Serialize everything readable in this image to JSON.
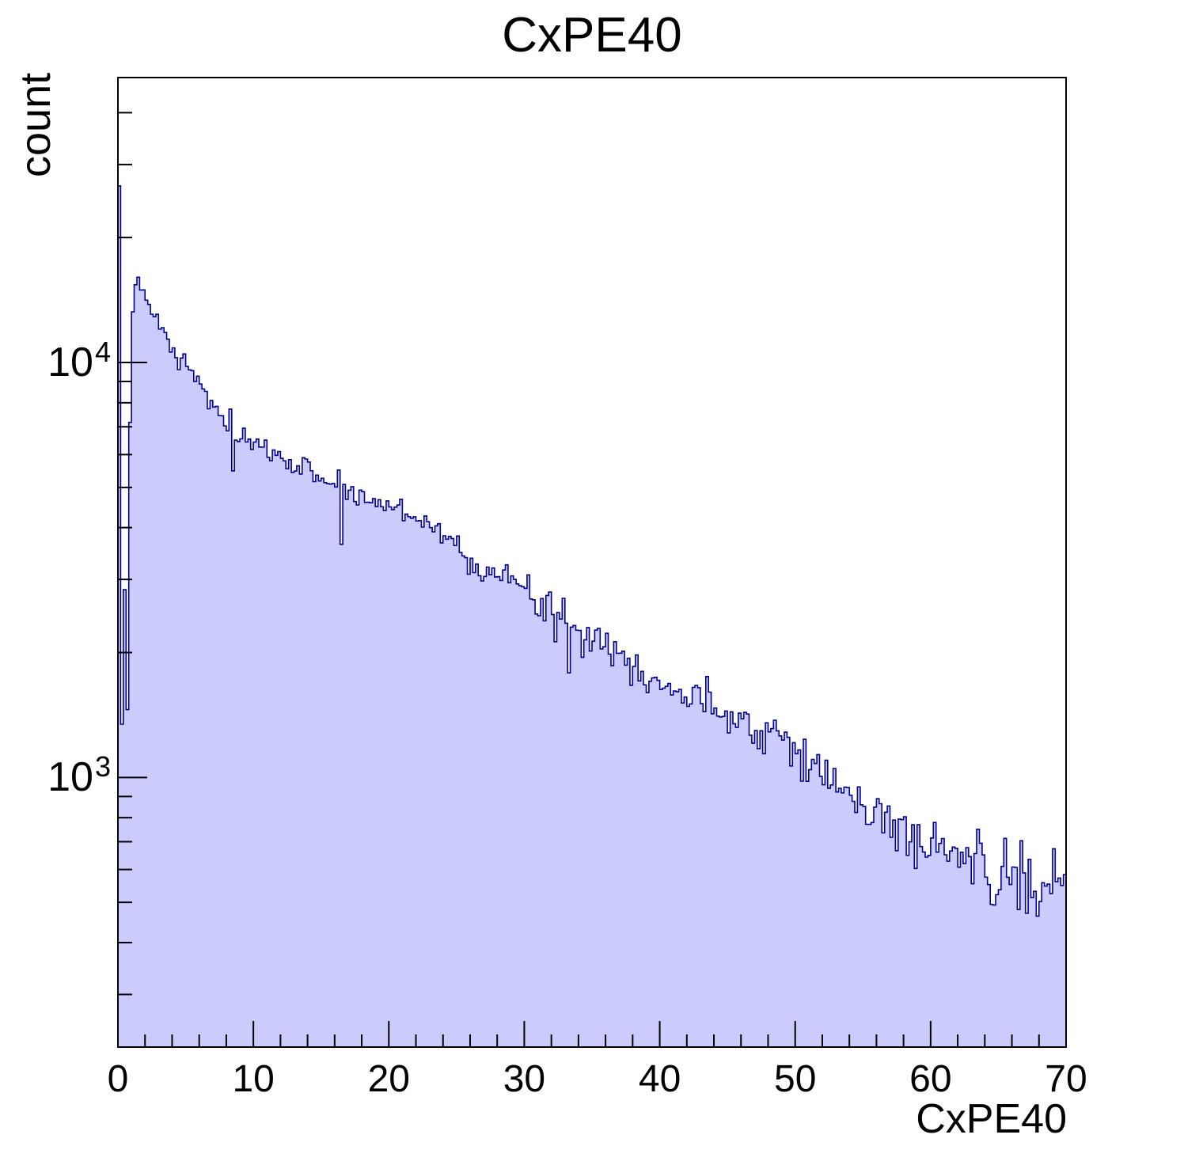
{
  "title": "CxPE40",
  "axes": {
    "x": {
      "label": "CxPE40",
      "min": 0,
      "max": 70,
      "major_tick_step": 10,
      "minor_tick_step": 2,
      "tick_labels": [
        "0",
        "10",
        "20",
        "30",
        "40",
        "50",
        "60",
        "70"
      ]
    },
    "y": {
      "label": "count",
      "scale": "log",
      "min": 224,
      "max": 48600,
      "tick_labels": [
        {
          "mantissa": "10",
          "exponent": "4"
        },
        {
          "mantissa": "10",
          "exponent": "3"
        }
      ]
    }
  },
  "colors": {
    "fill": "#ccccfc",
    "line": "#00008b",
    "frame": "#000000",
    "background": "#ffffff",
    "text": "#000000"
  },
  "chart_data": {
    "type": "histogram",
    "title": "CxPE40",
    "xlabel": "CxPE40",
    "ylabel": "count",
    "bin_width": 0.2,
    "x_range": [
      0,
      70
    ],
    "y_range": [
      224,
      48600
    ],
    "y_scale": "log",
    "grid": false,
    "legend": false,
    "envelope_points": [
      [
        0.1,
        25700
      ],
      [
        0.3,
        1350
      ],
      [
        0.5,
        2950
      ],
      [
        0.7,
        1450
      ],
      [
        0.9,
        7200
      ],
      [
        1.1,
        13000
      ],
      [
        1.3,
        15600
      ],
      [
        1.5,
        16400
      ],
      [
        1.8,
        14900
      ],
      [
        2.1,
        13800
      ],
      [
        2.5,
        13200
      ],
      [
        3.0,
        12400
      ],
      [
        3.5,
        11600
      ],
      [
        4.0,
        10700
      ],
      [
        4.5,
        9900
      ],
      [
        5.0,
        10100
      ],
      [
        5.5,
        9600
      ],
      [
        6.0,
        8800
      ],
      [
        6.5,
        8350
      ],
      [
        7.0,
        7850
      ],
      [
        7.5,
        7500
      ],
      [
        8.0,
        7050
      ],
      [
        8.7,
        6650
      ],
      [
        9.5,
        6400
      ],
      [
        10.5,
        6200
      ],
      [
        11.5,
        6030
      ],
      [
        12.5,
        5800
      ],
      [
        13.5,
        5600
      ],
      [
        14.5,
        5420
      ],
      [
        15.5,
        5200
      ],
      [
        16.5,
        4900
      ],
      [
        17.5,
        4780
      ],
      [
        18.5,
        4670
      ],
      [
        19.5,
        4550
      ],
      [
        20.5,
        4470
      ],
      [
        21.5,
        4330
      ],
      [
        22.5,
        4180
      ],
      [
        23.5,
        4000
      ],
      [
        24.5,
        3750
      ],
      [
        25.5,
        3430
      ],
      [
        26.5,
        3300
      ],
      [
        27.5,
        3150
      ],
      [
        28.5,
        3000
      ],
      [
        29.5,
        2880
      ],
      [
        30.5,
        2740
      ],
      [
        31.5,
        2620
      ],
      [
        32.5,
        2450
      ],
      [
        33.5,
        2350
      ],
      [
        34.5,
        2260
      ],
      [
        35.5,
        2150
      ],
      [
        36.5,
        2030
      ],
      [
        37.5,
        1940
      ],
      [
        38.5,
        1850
      ],
      [
        39.5,
        1740
      ],
      [
        40.5,
        1670
      ],
      [
        41.5,
        1590
      ],
      [
        42.5,
        1540
      ],
      [
        43.5,
        1510
      ],
      [
        44.5,
        1460
      ],
      [
        45.5,
        1420
      ],
      [
        46.5,
        1380
      ],
      [
        47.5,
        1330
      ],
      [
        48.5,
        1290
      ],
      [
        49.5,
        1240
      ],
      [
        50.5,
        1160
      ],
      [
        51.5,
        1070
      ],
      [
        52.5,
        990
      ],
      [
        53.5,
        930
      ],
      [
        54.5,
        870
      ],
      [
        55.5,
        830
      ],
      [
        56.5,
        795
      ],
      [
        57.5,
        765
      ],
      [
        58.5,
        735
      ],
      [
        59.5,
        705
      ],
      [
        60.5,
        678
      ],
      [
        61.5,
        658
      ],
      [
        62.5,
        645
      ],
      [
        63.5,
        622
      ],
      [
        64.5,
        605
      ],
      [
        65.5,
        588
      ],
      [
        66.5,
        565
      ],
      [
        67.5,
        540
      ],
      [
        68.5,
        520
      ],
      [
        69.5,
        505
      ]
    ],
    "noise": {
      "seed": 7,
      "decade_sigma_per_sqrt_count": 1.0,
      "clamp_sigma": 2.5
    },
    "spikes": [
      [
        4.9,
        1.05
      ],
      [
        5.3,
        0.95
      ],
      [
        8.3,
        1.1
      ],
      [
        8.5,
        0.8
      ],
      [
        16.3,
        1.1
      ],
      [
        16.5,
        0.76
      ],
      [
        29.3,
        1.08
      ],
      [
        31.9,
        1.1
      ],
      [
        32.3,
        0.84
      ],
      [
        32.9,
        1.14
      ],
      [
        33.3,
        0.8
      ],
      [
        33.7,
        1.08
      ],
      [
        34.3,
        0.86
      ],
      [
        36.1,
        1.06
      ],
      [
        47.1,
        0.88
      ],
      [
        52.1,
        0.92
      ],
      [
        57.3,
        0.86
      ],
      [
        61.1,
        0.9
      ],
      [
        64.7,
        0.72
      ],
      [
        66.3,
        1.1
      ],
      [
        68.1,
        0.85
      ],
      [
        69.1,
        1.18
      ],
      [
        69.9,
        1.05
      ]
    ]
  }
}
